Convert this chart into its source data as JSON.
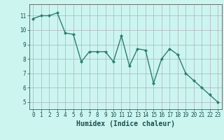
{
  "x": [
    0,
    1,
    2,
    3,
    4,
    5,
    6,
    7,
    8,
    9,
    10,
    11,
    12,
    13,
    14,
    15,
    16,
    17,
    18,
    19,
    20,
    21,
    22,
    23
  ],
  "y": [
    10.8,
    11.0,
    11.0,
    11.2,
    9.8,
    9.7,
    7.8,
    8.5,
    8.5,
    8.5,
    7.8,
    9.6,
    7.5,
    8.7,
    8.6,
    6.3,
    8.0,
    8.7,
    8.3,
    7.0,
    6.5,
    6.0,
    5.5,
    5.0
  ],
  "line_color": "#2e7d6e",
  "marker": "D",
  "marker_size": 2,
  "bg_color": "#ccf5f0",
  "grid_color": "#b0b0b8",
  "xlabel": "Humidex (Indice chaleur)",
  "ylim": [
    4.5,
    11.8
  ],
  "xlim": [
    -0.5,
    23.5
  ],
  "yticks": [
    5,
    6,
    7,
    8,
    9,
    10,
    11
  ],
  "xticks": [
    0,
    1,
    2,
    3,
    4,
    5,
    6,
    7,
    8,
    9,
    10,
    11,
    12,
    13,
    14,
    15,
    16,
    17,
    18,
    19,
    20,
    21,
    22,
    23
  ],
  "tick_fontsize": 5.5,
  "xlabel_fontsize": 7,
  "line_width": 1.0
}
